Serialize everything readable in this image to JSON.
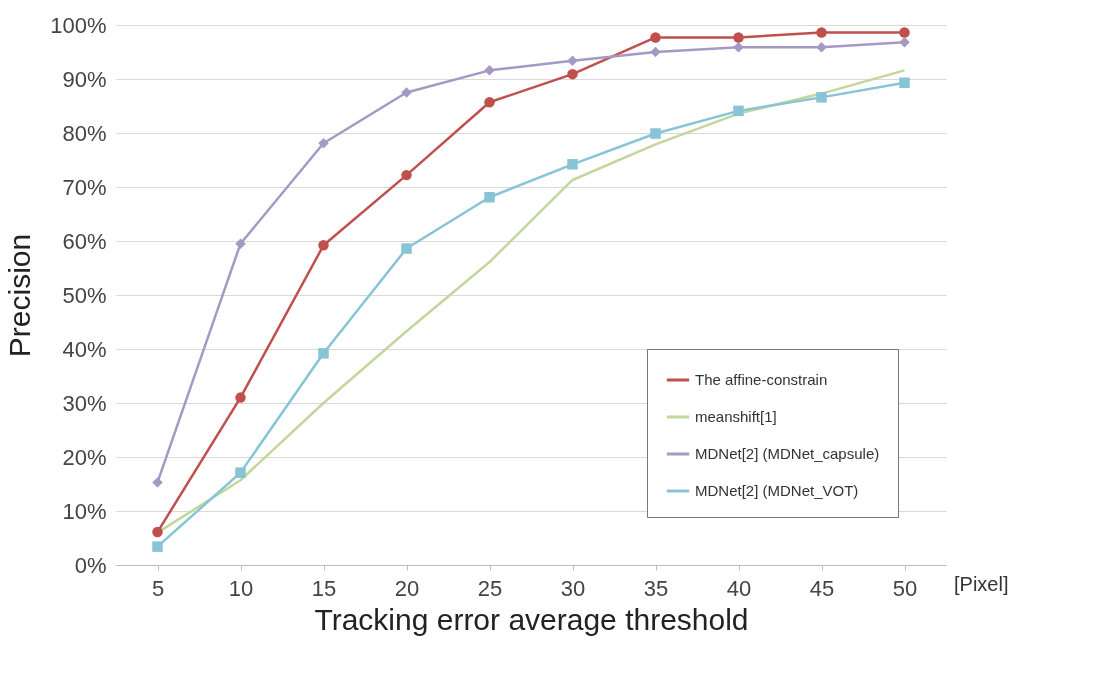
{
  "chart_data": {
    "type": "line",
    "xlabel": "Tracking error average threshold",
    "ylabel": "Precision",
    "categories": [
      "5",
      "10",
      "15",
      "20",
      "25",
      "30",
      "35",
      "40",
      "45",
      "50"
    ],
    "series": [
      {
        "name": "The affine-constrain",
        "color": "#c0504d",
        "marker": "circle",
        "values": [
          6.1,
          31,
          59.2,
          72.2,
          85.7,
          90.9,
          97.7,
          97.7,
          98.6,
          98.6
        ]
      },
      {
        "name": "meanshift[1]",
        "color": "#c3d69b",
        "marker": "none",
        "values": [
          6,
          15.7,
          30,
          43.3,
          56.1,
          71.3,
          77.9,
          83.6,
          87.3,
          91.6
        ]
      },
      {
        "name": "MDNet[2] (MDNet_capsule)",
        "color": "#a599c4",
        "marker": "diamond",
        "values": [
          15.3,
          59.5,
          78.1,
          87.5,
          91.6,
          93.4,
          95,
          95.9,
          95.9,
          96.8
        ]
      },
      {
        "name": "MDNet[2] (MDNet_VOT)",
        "color": "#86c4d6",
        "marker": "square",
        "values": [
          3.4,
          17.1,
          39.2,
          58.6,
          68.1,
          74.2,
          79.9,
          84.1,
          86.6,
          89.3
        ]
      }
    ],
    "ylim": [
      0,
      100
    ],
    "yticks": [
      {
        "value": 0,
        "label": "0%"
      },
      {
        "value": 10,
        "label": "10%"
      },
      {
        "value": 20,
        "label": "20%"
      },
      {
        "value": 30,
        "label": "30%"
      },
      {
        "value": 40,
        "label": "40%"
      },
      {
        "value": 50,
        "label": "50%"
      },
      {
        "value": 60,
        "label": "60%"
      },
      {
        "value": 70,
        "label": "70%"
      },
      {
        "value": 80,
        "label": "80%"
      },
      {
        "value": 90,
        "label": "90%"
      },
      {
        "value": 100,
        "label": "100%"
      }
    ],
    "grid": "y",
    "legend": "bottom right",
    "annotations": [
      "[Pixel]"
    ]
  }
}
